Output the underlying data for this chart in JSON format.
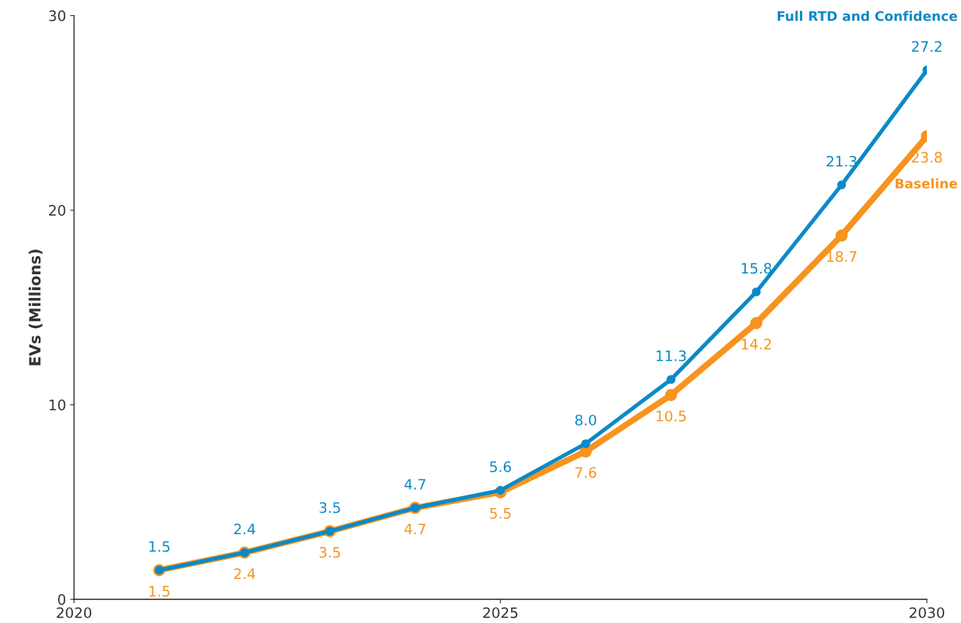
{
  "chart_data": {
    "type": "line",
    "ylabel": "EVs (Millions)",
    "x": [
      2021,
      2022,
      2023,
      2024,
      2025,
      2026,
      2027,
      2028,
      2029,
      2030
    ],
    "xlim": [
      2020,
      2030
    ],
    "xticks": [
      2020,
      2025,
      2030
    ],
    "ylim": [
      0,
      30
    ],
    "yticks": [
      0,
      10,
      20,
      30
    ],
    "grid": false,
    "legend": false,
    "marker": "circle",
    "line_style": "solid",
    "series": [
      {
        "name": "Baseline",
        "color": "#f7931e",
        "values": [
          1.5,
          2.4,
          3.5,
          4.7,
          5.5,
          7.6,
          10.5,
          14.2,
          18.7,
          23.8
        ],
        "value_labels": [
          "1.5",
          "2.4",
          "3.5",
          "4.7",
          "5.5",
          "7.6",
          "10.5",
          "14.2",
          "18.7",
          "23.8"
        ]
      },
      {
        "name": "Full RTD and Confidence",
        "color": "#0a8ac6",
        "values": [
          1.5,
          2.4,
          3.5,
          4.7,
          5.6,
          8.0,
          11.3,
          15.8,
          21.3,
          27.2
        ],
        "value_labels": [
          "1.5",
          "2.4",
          "3.5",
          "4.7",
          "5.6",
          "8.0",
          "11.3",
          "15.8",
          "21.3",
          "27.2"
        ]
      }
    ]
  }
}
